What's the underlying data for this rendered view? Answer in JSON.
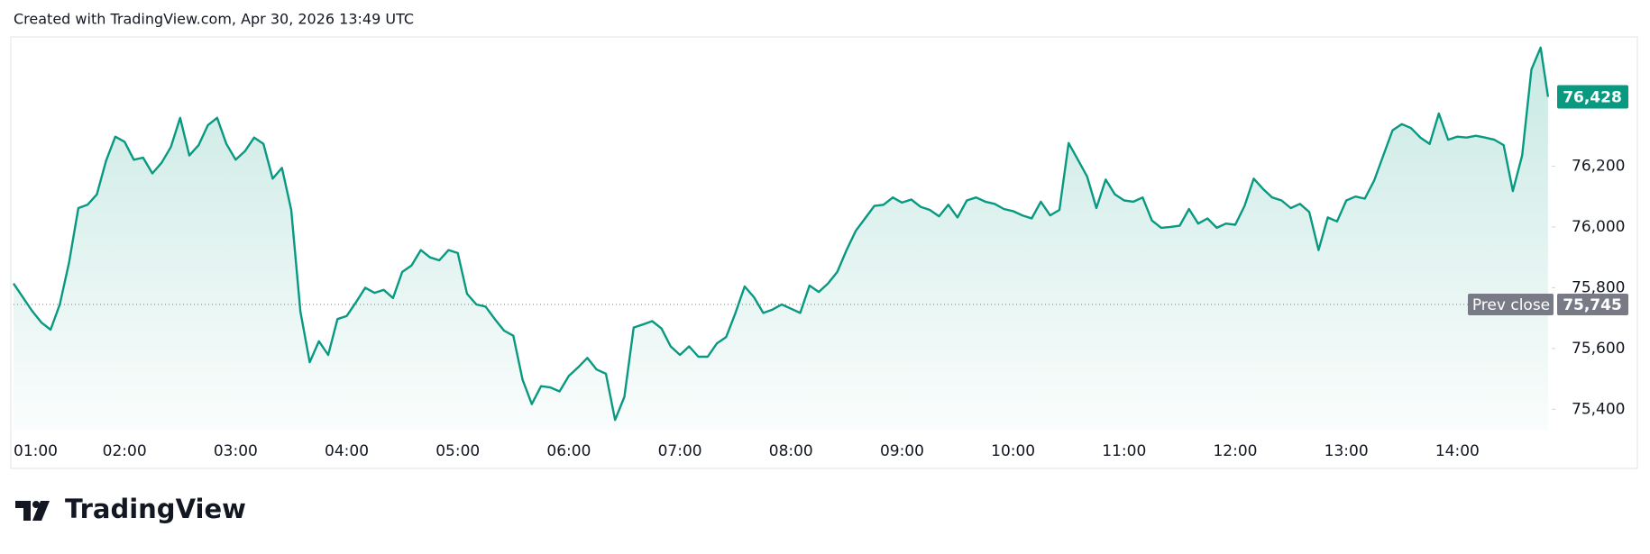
{
  "header": "Created with TradingView.com, Apr 30, 2026 13:49 UTC",
  "branding": "TradingView",
  "chart_data": {
    "type": "area",
    "color": "#089981",
    "x": [
      60,
      65,
      70,
      75,
      80,
      85,
      90,
      95,
      100,
      105,
      110,
      115,
      120,
      125,
      130,
      135,
      140,
      145,
      150,
      155,
      160,
      165,
      170,
      175,
      180,
      185,
      190,
      195,
      200,
      205,
      210,
      215,
      220,
      225,
      230,
      235,
      240,
      245,
      250,
      255,
      260,
      265,
      270,
      275,
      280,
      285,
      290,
      295,
      300,
      305,
      310,
      315,
      320,
      325,
      330,
      335,
      340,
      345,
      350,
      355,
      360,
      365,
      370,
      375,
      380,
      385,
      390,
      395,
      400,
      405,
      410,
      415,
      420,
      425,
      430,
      435,
      440,
      445,
      450,
      455,
      460,
      465,
      470,
      475,
      480,
      485,
      490,
      495,
      500,
      505,
      510,
      515,
      520,
      525,
      530,
      535,
      540,
      545,
      550,
      555,
      560,
      565,
      570,
      575,
      580,
      585,
      590,
      595,
      600,
      605,
      610,
      615,
      620,
      625,
      630,
      635,
      640,
      645,
      650,
      655,
      660,
      665,
      670,
      675,
      680,
      685,
      690,
      695,
      700,
      705,
      710,
      715,
      720,
      725,
      730,
      735,
      740,
      745,
      750,
      755,
      760,
      765,
      770,
      775,
      780,
      785,
      790,
      795,
      800,
      805,
      810,
      815,
      820,
      825,
      830,
      835,
      840,
      845,
      850,
      855,
      860,
      865,
      870,
      875,
      880,
      885,
      889
    ],
    "values": [
      75814,
      75769,
      75724,
      75686,
      75662,
      75745,
      75883,
      76062,
      76073,
      76107,
      76218,
      76297,
      76280,
      76221,
      76228,
      76176,
      76211,
      76263,
      76359,
      76235,
      76269,
      76335,
      76359,
      76273,
      76221,
      76249,
      76294,
      76273,
      76159,
      76194,
      76056,
      75721,
      75555,
      75624,
      75579,
      75697,
      75707,
      75752,
      75800,
      75783,
      75793,
      75766,
      75852,
      75873,
      75924,
      75900,
      75890,
      75924,
      75914,
      75780,
      75745,
      75738,
      75697,
      75659,
      75642,
      75497,
      75417,
      75476,
      75472,
      75459,
      75510,
      75538,
      75569,
      75531,
      75517,
      75365,
      75441,
      75669,
      75679,
      75690,
      75666,
      75607,
      75579,
      75607,
      75573,
      75573,
      75617,
      75638,
      75717,
      75804,
      75769,
      75717,
      75728,
      75745,
      75731,
      75717,
      75807,
      75786,
      75814,
      75852,
      75924,
      75987,
      76028,
      76069,
      76073,
      76097,
      76080,
      76090,
      76066,
      76056,
      76035,
      76073,
      76031,
      76087,
      76097,
      76083,
      76076,
      76059,
      76052,
      76038,
      76028,
      76083,
      76038,
      76056,
      76276,
      76221,
      76166,
      76062,
      76156,
      76107,
      76087,
      76083,
      76097,
      76021,
      75997,
      76000,
      76004,
      76059,
      76011,
      76028,
      75997,
      76011,
      76007,
      76069,
      76159,
      76125,
      76097,
      76087,
      76062,
      76076,
      76049,
      75924,
      76031,
      76018,
      76087,
      76100,
      76093,
      76152,
      76235,
      76318,
      76338,
      76325,
      76294,
      76273,
      76373,
      76287,
      76297,
      76294,
      76300,
      76294,
      76287,
      76269,
      76118,
      76235,
      76518,
      76590,
      76428
    ],
    "last_value_label": "76,428",
    "prev_close": {
      "label": "Prev close",
      "value": 75745,
      "value_label": "75,745"
    },
    "xlim": [
      60,
      890
    ],
    "xticks": [
      {
        "value": 60,
        "label": "01:00"
      },
      {
        "value": 120,
        "label": "02:00"
      },
      {
        "value": 180,
        "label": "03:00"
      },
      {
        "value": 240,
        "label": "04:00"
      },
      {
        "value": 300,
        "label": "05:00"
      },
      {
        "value": 360,
        "label": "06:00"
      },
      {
        "value": 420,
        "label": "07:00"
      },
      {
        "value": 480,
        "label": "08:00"
      },
      {
        "value": 540,
        "label": "09:00"
      },
      {
        "value": 600,
        "label": "10:00"
      },
      {
        "value": 660,
        "label": "11:00"
      },
      {
        "value": 720,
        "label": "12:00"
      },
      {
        "value": 780,
        "label": "13:00"
      },
      {
        "value": 840,
        "label": "14:00"
      }
    ],
    "ylim": [
      75330,
      76625
    ],
    "yticks": [
      {
        "value": 75400,
        "label": "75,400"
      },
      {
        "value": 75600,
        "label": "75,600"
      },
      {
        "value": 75800,
        "label": "75,800"
      },
      {
        "value": 76000,
        "label": "76,000"
      },
      {
        "value": 76200,
        "label": "76,200"
      }
    ]
  }
}
